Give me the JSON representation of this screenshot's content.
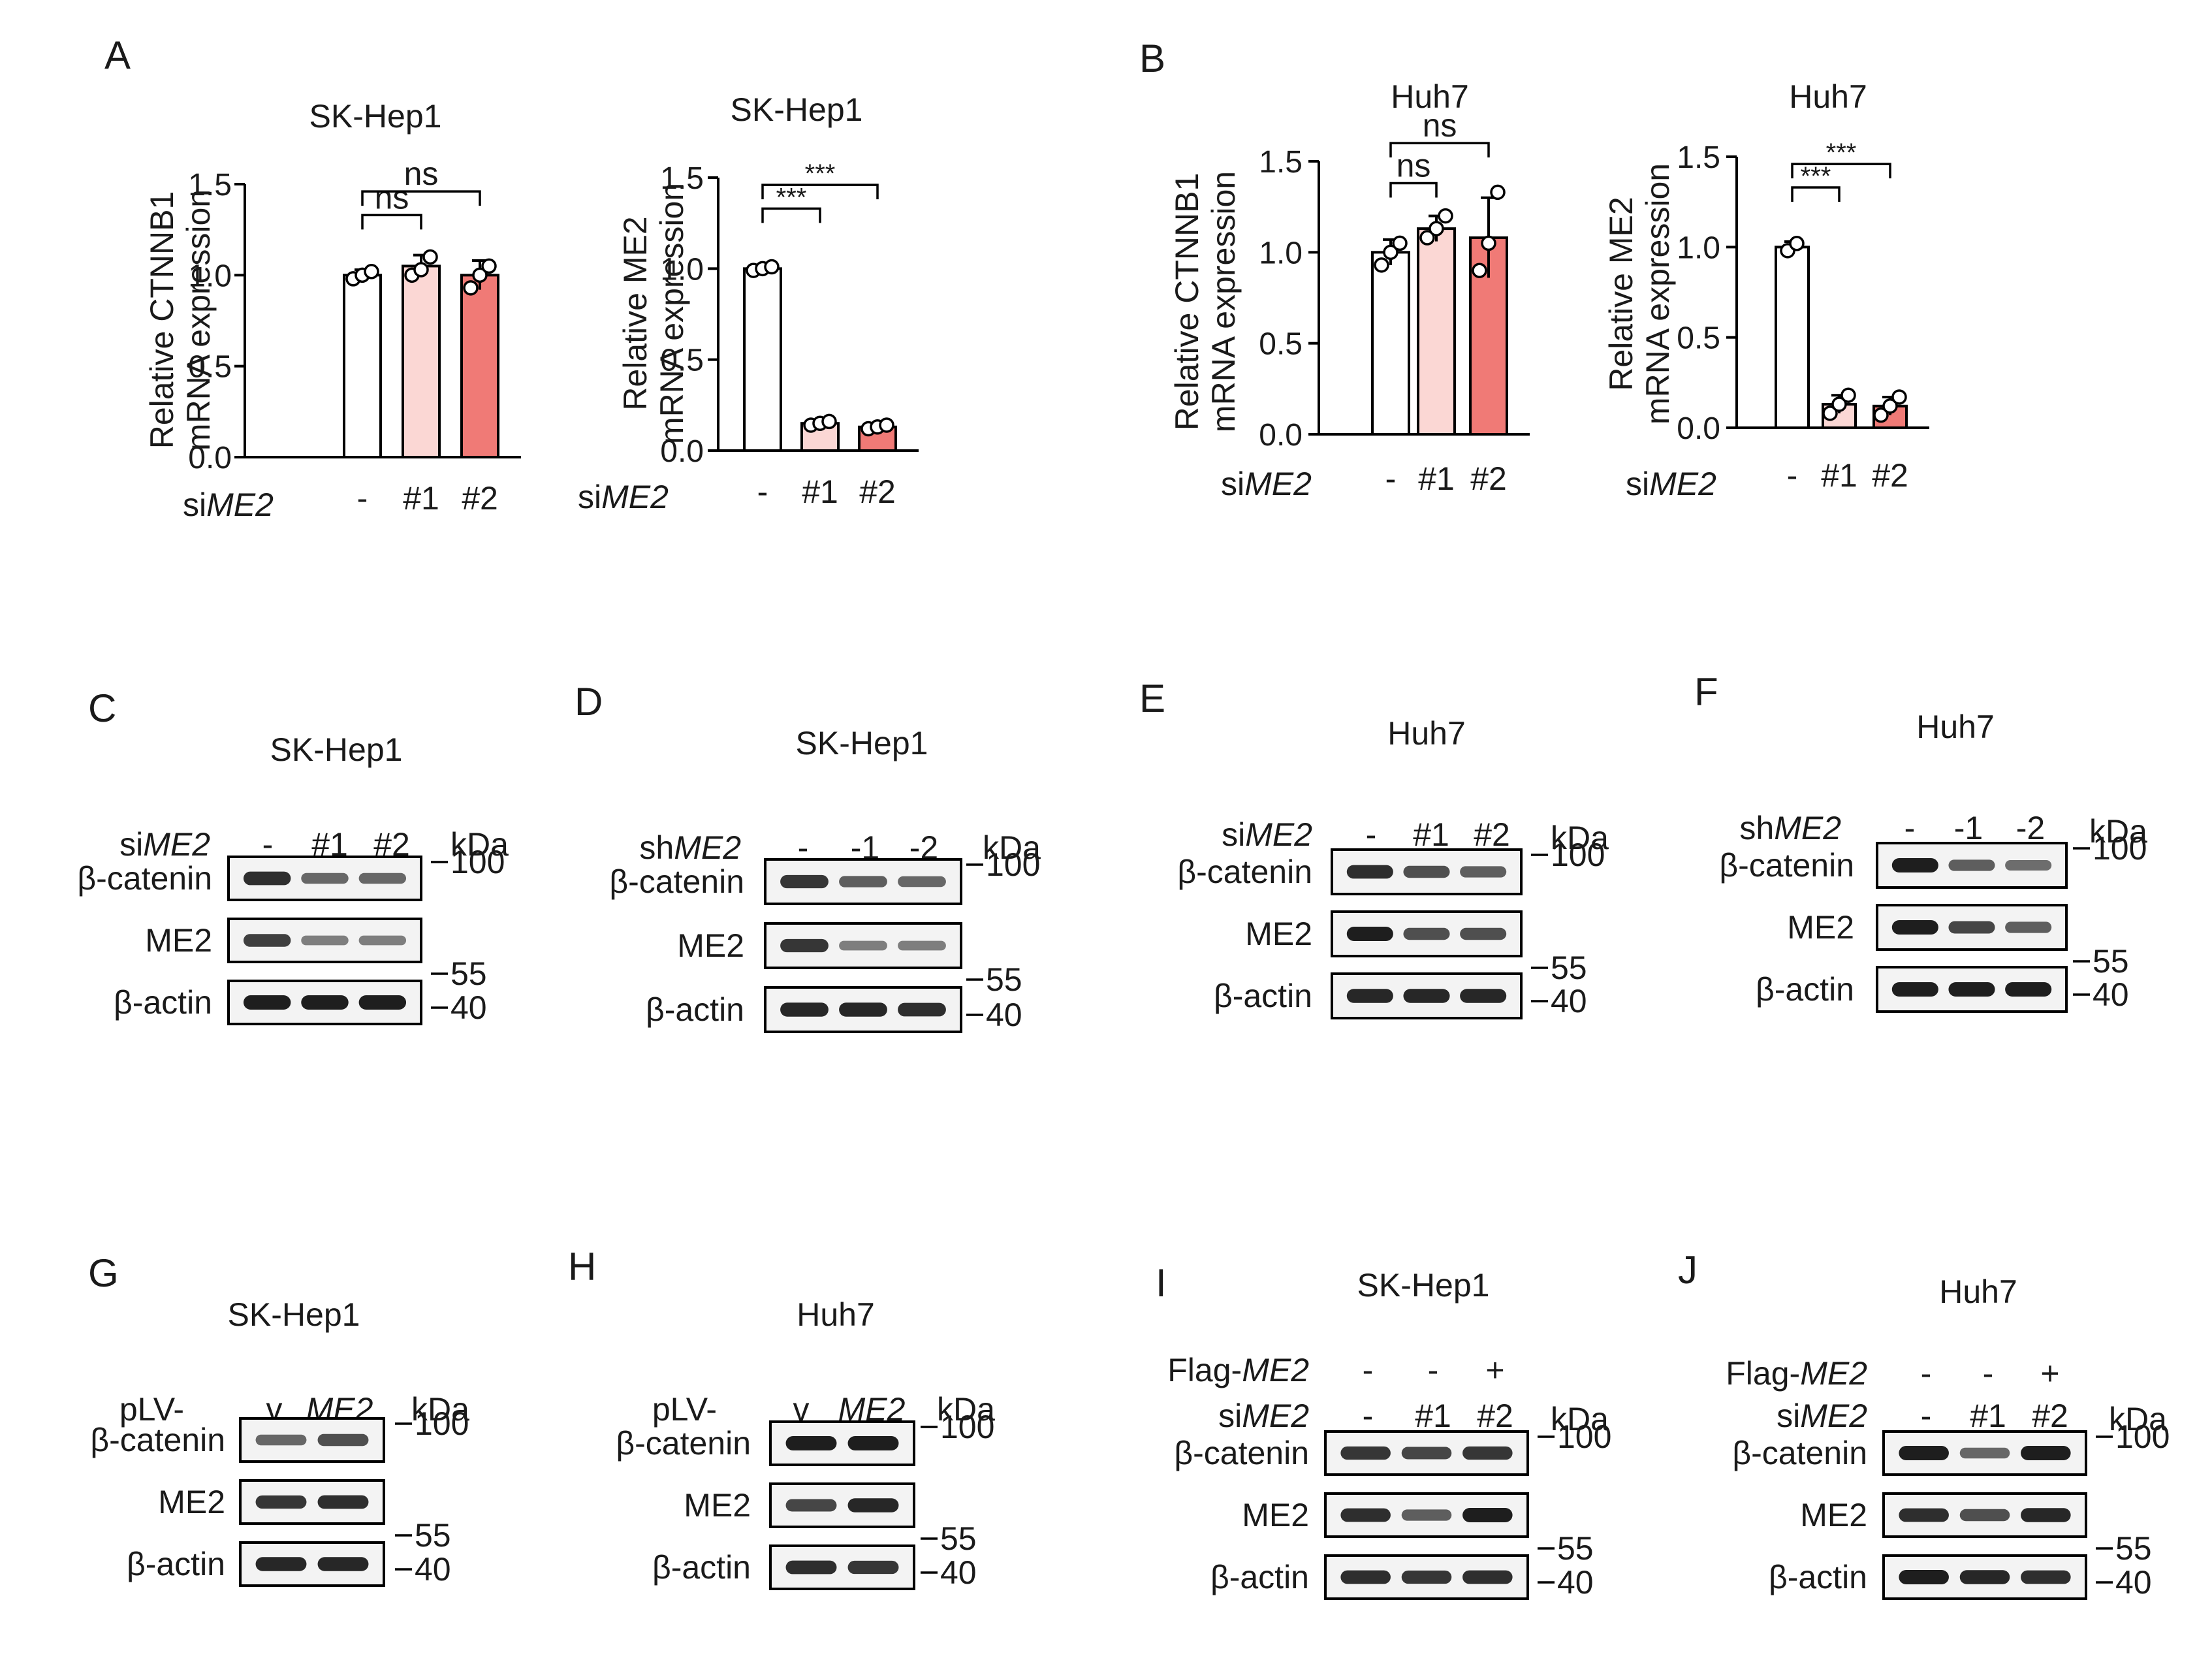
{
  "figure_type": "multi-panel research figure",
  "colors": {
    "bar_control": "#ffffff",
    "bar_si1": "#fbd7d4",
    "bar_si2": "#f07a76",
    "axis": "#000000",
    "blot_background": "#f3f3f3",
    "band": "#1e1e1e"
  },
  "chart_data": [
    {
      "panel": "A",
      "type": "bar",
      "title": "SK-Hep1",
      "ylabel": [
        "Relative CTNNB1",
        "mRNA expression"
      ],
      "ylim": [
        0,
        1.5
      ],
      "yticks": [
        "0.0",
        "0.5",
        "1.0",
        "1.5"
      ],
      "condition_label": [
        "si",
        "ME2"
      ],
      "categories": [
        "-",
        "#1",
        "#2"
      ],
      "values": [
        1.0,
        1.05,
        1.0
      ],
      "error": [
        0.03,
        0.06,
        0.08
      ],
      "replicates": [
        [
          0.98,
          1.0,
          1.02
        ],
        [
          1.0,
          1.03,
          1.1
        ],
        [
          0.93,
          1.0,
          1.05
        ]
      ],
      "significance": [
        {
          "from": 0,
          "to": 1,
          "label": "ns"
        },
        {
          "from": 0,
          "to": 2,
          "label": "ns"
        }
      ]
    },
    {
      "panel": "A",
      "type": "bar",
      "title": "SK-Hep1",
      "ylabel": [
        "Relative ME2",
        "mRNA expression"
      ],
      "ylim": [
        0,
        1.5
      ],
      "yticks": [
        "0.0",
        "0.5",
        "1.0",
        "1.5"
      ],
      "condition_label": [
        "si",
        "ME2"
      ],
      "categories": [
        "-",
        "#1",
        "#2"
      ],
      "values": [
        1.0,
        0.15,
        0.13
      ],
      "error": [
        0.02,
        0.02,
        0.02
      ],
      "replicates": [
        [
          0.99,
          1.0,
          1.01
        ],
        [
          0.14,
          0.15,
          0.16
        ],
        [
          0.12,
          0.13,
          0.14
        ]
      ],
      "significance": [
        {
          "from": 0,
          "to": 1,
          "label": "***"
        },
        {
          "from": 0,
          "to": 2,
          "label": "***"
        }
      ]
    },
    {
      "panel": "B",
      "type": "bar",
      "title": "Huh7",
      "ylabel": [
        "Relative CTNNB1",
        "mRNA expression"
      ],
      "ylim": [
        0,
        1.5
      ],
      "yticks": [
        "0.0",
        "0.5",
        "1.0",
        "1.5"
      ],
      "condition_label": [
        "si",
        "ME2"
      ],
      "categories": [
        "-",
        "#1",
        "#2"
      ],
      "values": [
        1.0,
        1.13,
        1.08
      ],
      "error": [
        0.07,
        0.07,
        0.22
      ],
      "replicates": [
        [
          0.93,
          1.0,
          1.05
        ],
        [
          1.08,
          1.13,
          1.2
        ],
        [
          0.9,
          1.05,
          1.33
        ]
      ],
      "significance": [
        {
          "from": 0,
          "to": 1,
          "label": "ns"
        },
        {
          "from": 0,
          "to": 2,
          "label": "ns"
        }
      ]
    },
    {
      "panel": "B",
      "type": "bar",
      "title": "Huh7",
      "ylabel": [
        "Relative ME2",
        "mRNA expression"
      ],
      "ylim": [
        0,
        1.5
      ],
      "yticks": [
        "0.0",
        "0.5",
        "1.0",
        "1.5"
      ],
      "condition_label": [
        "si",
        "ME2"
      ],
      "categories": [
        "-",
        "#1",
        "#2"
      ],
      "values": [
        1.0,
        0.13,
        0.12
      ],
      "error": [
        0.03,
        0.05,
        0.05
      ],
      "replicates": [
        [
          0.98,
          1.02
        ],
        [
          0.08,
          0.13,
          0.18
        ],
        [
          0.07,
          0.12,
          0.17
        ]
      ],
      "significance": [
        {
          "from": 0,
          "to": 1,
          "label": "***"
        },
        {
          "from": 0,
          "to": 2,
          "label": "***"
        }
      ]
    }
  ],
  "panel_labels": {
    "A": "A",
    "B": "B"
  },
  "blot_panels": [
    {
      "panel": "C",
      "title": "SK-Hep1",
      "conditions": [
        {
          "prefix": "si",
          "gene": "ME2",
          "lanes": [
            "-",
            "#1",
            "#2"
          ]
        }
      ],
      "rows": [
        {
          "label": "β-catenin",
          "marker": "100",
          "intensity": [
            0.9,
            0.55,
            0.55
          ]
        },
        {
          "label": "ME2",
          "marker": "55",
          "intensity": [
            0.8,
            0.4,
            0.4
          ]
        },
        {
          "label": "β-actin",
          "marker": "40",
          "intensity": [
            1.0,
            1.0,
            1.0
          ]
        }
      ],
      "kda": "kDa"
    },
    {
      "panel": "D",
      "title": "SK-Hep1",
      "conditions": [
        {
          "prefix": "sh",
          "gene": "ME2",
          "lanes": [
            "-",
            "-1",
            "-2"
          ]
        }
      ],
      "rows": [
        {
          "label": "β-catenin",
          "marker": "100",
          "intensity": [
            0.85,
            0.6,
            0.55
          ]
        },
        {
          "label": "ME2",
          "marker": "55",
          "intensity": [
            0.85,
            0.4,
            0.4
          ]
        },
        {
          "label": "β-actin",
          "marker": "40",
          "intensity": [
            0.95,
            0.95,
            0.9
          ]
        }
      ],
      "kda": "kDa"
    },
    {
      "panel": "E",
      "title": "Huh7",
      "conditions": [
        {
          "prefix": "si",
          "gene": "ME2",
          "lanes": [
            "-",
            "#1",
            "#2"
          ]
        }
      ],
      "rows": [
        {
          "label": "β-catenin",
          "marker": "100",
          "intensity": [
            0.9,
            0.7,
            0.6
          ]
        },
        {
          "label": "ME2",
          "marker": "55",
          "intensity": [
            1.0,
            0.7,
            0.7
          ]
        },
        {
          "label": "β-actin",
          "marker": "40",
          "intensity": [
            0.95,
            0.95,
            0.95
          ]
        }
      ],
      "kda": "kDa"
    },
    {
      "panel": "F",
      "title": "Huh7",
      "conditions": [
        {
          "prefix": "sh",
          "gene": "ME2",
          "lanes": [
            "-",
            "-1",
            "-2"
          ]
        }
      ],
      "rows": [
        {
          "label": "β-catenin",
          "marker": "100",
          "intensity": [
            1.0,
            0.6,
            0.5
          ]
        },
        {
          "label": "ME2",
          "marker": "55",
          "intensity": [
            1.0,
            0.75,
            0.6
          ]
        },
        {
          "label": "β-actin",
          "marker": "40",
          "intensity": [
            1.0,
            1.0,
            1.0
          ]
        }
      ],
      "kda": "kDa"
    },
    {
      "panel": "G",
      "title": "SK-Hep1",
      "conditions": [
        {
          "prefix": "pLV-",
          "lanes": [
            "v",
            "ME2"
          ],
          "italic_lane": 1
        }
      ],
      "rows": [
        {
          "label": "β-catenin",
          "marker": "100",
          "intensity": [
            0.55,
            0.7
          ]
        },
        {
          "label": "ME2",
          "marker": "55",
          "intensity": [
            0.85,
            0.9
          ]
        },
        {
          "label": "β-actin",
          "marker": "40",
          "intensity": [
            0.95,
            0.95
          ]
        }
      ],
      "kda": "kDa"
    },
    {
      "panel": "H",
      "title": "Huh7",
      "conditions": [
        {
          "prefix": "pLV-",
          "lanes": [
            "v",
            "ME2"
          ],
          "italic_lane": 1
        }
      ],
      "rows": [
        {
          "label": "β-catenin",
          "marker": "100",
          "intensity": [
            1.0,
            1.0
          ]
        },
        {
          "label": "ME2",
          "marker": "55",
          "intensity": [
            0.75,
            0.95
          ]
        },
        {
          "label": "β-actin",
          "marker": "40",
          "intensity": [
            0.9,
            0.85
          ]
        }
      ],
      "kda": "kDa"
    },
    {
      "panel": "I",
      "title": "SK-Hep1",
      "conditions": [
        {
          "prefix": "Flag-",
          "gene": "ME2",
          "lanes": [
            "-",
            "-",
            "+"
          ]
        },
        {
          "prefix": "si",
          "gene": "ME2",
          "lanes": [
            "-",
            "#1",
            "#2"
          ]
        }
      ],
      "rows": [
        {
          "label": "β-catenin",
          "marker": "100",
          "intensity": [
            0.85,
            0.75,
            0.85
          ]
        },
        {
          "label": "ME2",
          "marker": "55",
          "intensity": [
            0.9,
            0.6,
            1.0
          ]
        },
        {
          "label": "β-actin",
          "marker": "40",
          "intensity": [
            0.9,
            0.85,
            0.9
          ]
        }
      ],
      "kda": "kDa"
    },
    {
      "panel": "J",
      "title": "Huh7",
      "conditions": [
        {
          "prefix": "Flag-",
          "gene": "ME2",
          "lanes": [
            "-",
            "-",
            "+"
          ]
        },
        {
          "prefix": "si",
          "gene": "ME2",
          "lanes": [
            "-",
            "#1",
            "#2"
          ]
        }
      ],
      "rows": [
        {
          "label": "β-catenin",
          "marker": "100",
          "intensity": [
            1.0,
            0.55,
            1.0
          ]
        },
        {
          "label": "ME2",
          "marker": "55",
          "intensity": [
            0.9,
            0.7,
            0.95
          ]
        },
        {
          "label": "β-actin",
          "marker": "40",
          "intensity": [
            1.0,
            0.95,
            0.9
          ]
        }
      ],
      "kda": "kDa"
    }
  ]
}
